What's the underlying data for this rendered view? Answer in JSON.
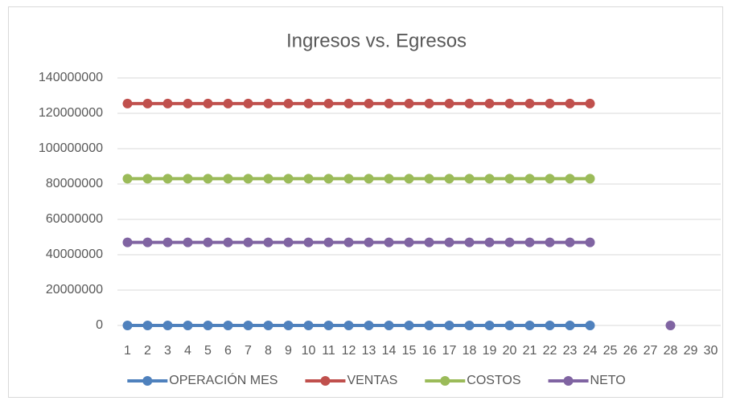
{
  "chart_data": {
    "type": "line",
    "title": "Ingresos vs. Egresos",
    "categories": [
      "1",
      "2",
      "3",
      "4",
      "5",
      "6",
      "7",
      "8",
      "9",
      "10",
      "11",
      "12",
      "13",
      "14",
      "15",
      "16",
      "17",
      "18",
      "19",
      "20",
      "21",
      "22",
      "23",
      "24",
      "25",
      "26",
      "27",
      "28",
      "29",
      "30"
    ],
    "series": [
      {
        "name": "OPERACIÓN MES",
        "color": "#4f81bd",
        "values": [
          0,
          0,
          0,
          0,
          0,
          0,
          0,
          0,
          0,
          0,
          0,
          0,
          0,
          0,
          0,
          0,
          0,
          0,
          0,
          0,
          0,
          0,
          0,
          0,
          null,
          null,
          null,
          null,
          null,
          null
        ]
      },
      {
        "name": "VENTAS",
        "color": "#c0504d",
        "values": [
          125500000,
          125500000,
          125500000,
          125500000,
          125500000,
          125500000,
          125500000,
          125500000,
          125500000,
          125500000,
          125500000,
          125500000,
          125500000,
          125500000,
          125500000,
          125500000,
          125500000,
          125500000,
          125500000,
          125500000,
          125500000,
          125500000,
          125500000,
          125500000,
          null,
          null,
          null,
          null,
          null,
          null
        ]
      },
      {
        "name": "COSTOS",
        "color": "#9bbb59",
        "values": [
          83000000,
          83000000,
          83000000,
          83000000,
          83000000,
          83000000,
          83000000,
          83000000,
          83000000,
          83000000,
          83000000,
          83000000,
          83000000,
          83000000,
          83000000,
          83000000,
          83000000,
          83000000,
          83000000,
          83000000,
          83000000,
          83000000,
          83000000,
          83000000,
          null,
          null,
          null,
          null,
          null,
          null
        ]
      },
      {
        "name": "NETO",
        "color": "#8064a2",
        "values": [
          47000000,
          47000000,
          47000000,
          47000000,
          47000000,
          47000000,
          47000000,
          47000000,
          47000000,
          47000000,
          47000000,
          47000000,
          47000000,
          47000000,
          47000000,
          47000000,
          47000000,
          47000000,
          47000000,
          47000000,
          47000000,
          47000000,
          47000000,
          47000000,
          null,
          null,
          null,
          0,
          null,
          null
        ]
      }
    ],
    "ylim": [
      0,
      140000000
    ],
    "yticks": [
      0,
      20000000,
      40000000,
      60000000,
      80000000,
      100000000,
      120000000,
      140000000
    ],
    "grid": true,
    "legend": "bottom"
  }
}
